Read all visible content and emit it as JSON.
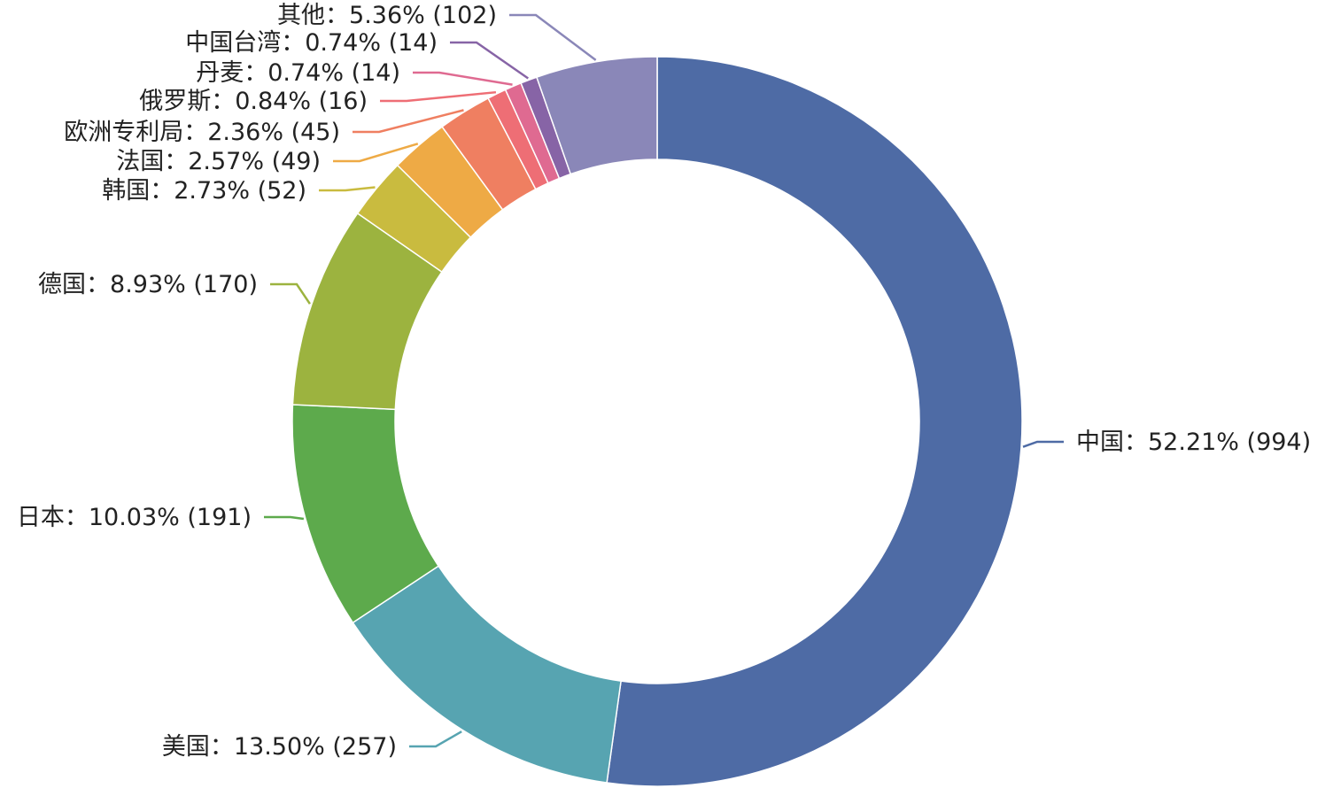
{
  "chart_data": {
    "type": "pie",
    "variant": "donut",
    "title": "",
    "legend": "none",
    "label_format": "{name}：{percent} ({value})",
    "slices": [
      {
        "name": "中国",
        "value": 994,
        "percent": "52.21%",
        "color": "#4e6ba5"
      },
      {
        "name": "美国",
        "value": 257,
        "percent": "13.50%",
        "color": "#57a4b1"
      },
      {
        "name": "日本",
        "value": 191,
        "percent": "10.03%",
        "color": "#5daa4c"
      },
      {
        "name": "德国",
        "value": 170,
        "percent": "8.93%",
        "color": "#9cb33f"
      },
      {
        "name": "韩国",
        "value": 52,
        "percent": "2.73%",
        "color": "#c9bb3f"
      },
      {
        "name": "法国",
        "value": 49,
        "percent": "2.57%",
        "color": "#eeaa45"
      },
      {
        "name": "欧洲专利局",
        "value": 45,
        "percent": "2.36%",
        "color": "#ef7f61"
      },
      {
        "name": "俄罗斯",
        "value": 16,
        "percent": "0.84%",
        "color": "#ee6e75"
      },
      {
        "name": "丹麦",
        "value": 14,
        "percent": "0.74%",
        "color": "#df6a91"
      },
      {
        "name": "中国台湾",
        "value": 14,
        "percent": "0.74%",
        "color": "#8764a6"
      },
      {
        "name": "其他",
        "value": 102,
        "percent": "5.36%",
        "color": "#8a87b8"
      }
    ]
  }
}
